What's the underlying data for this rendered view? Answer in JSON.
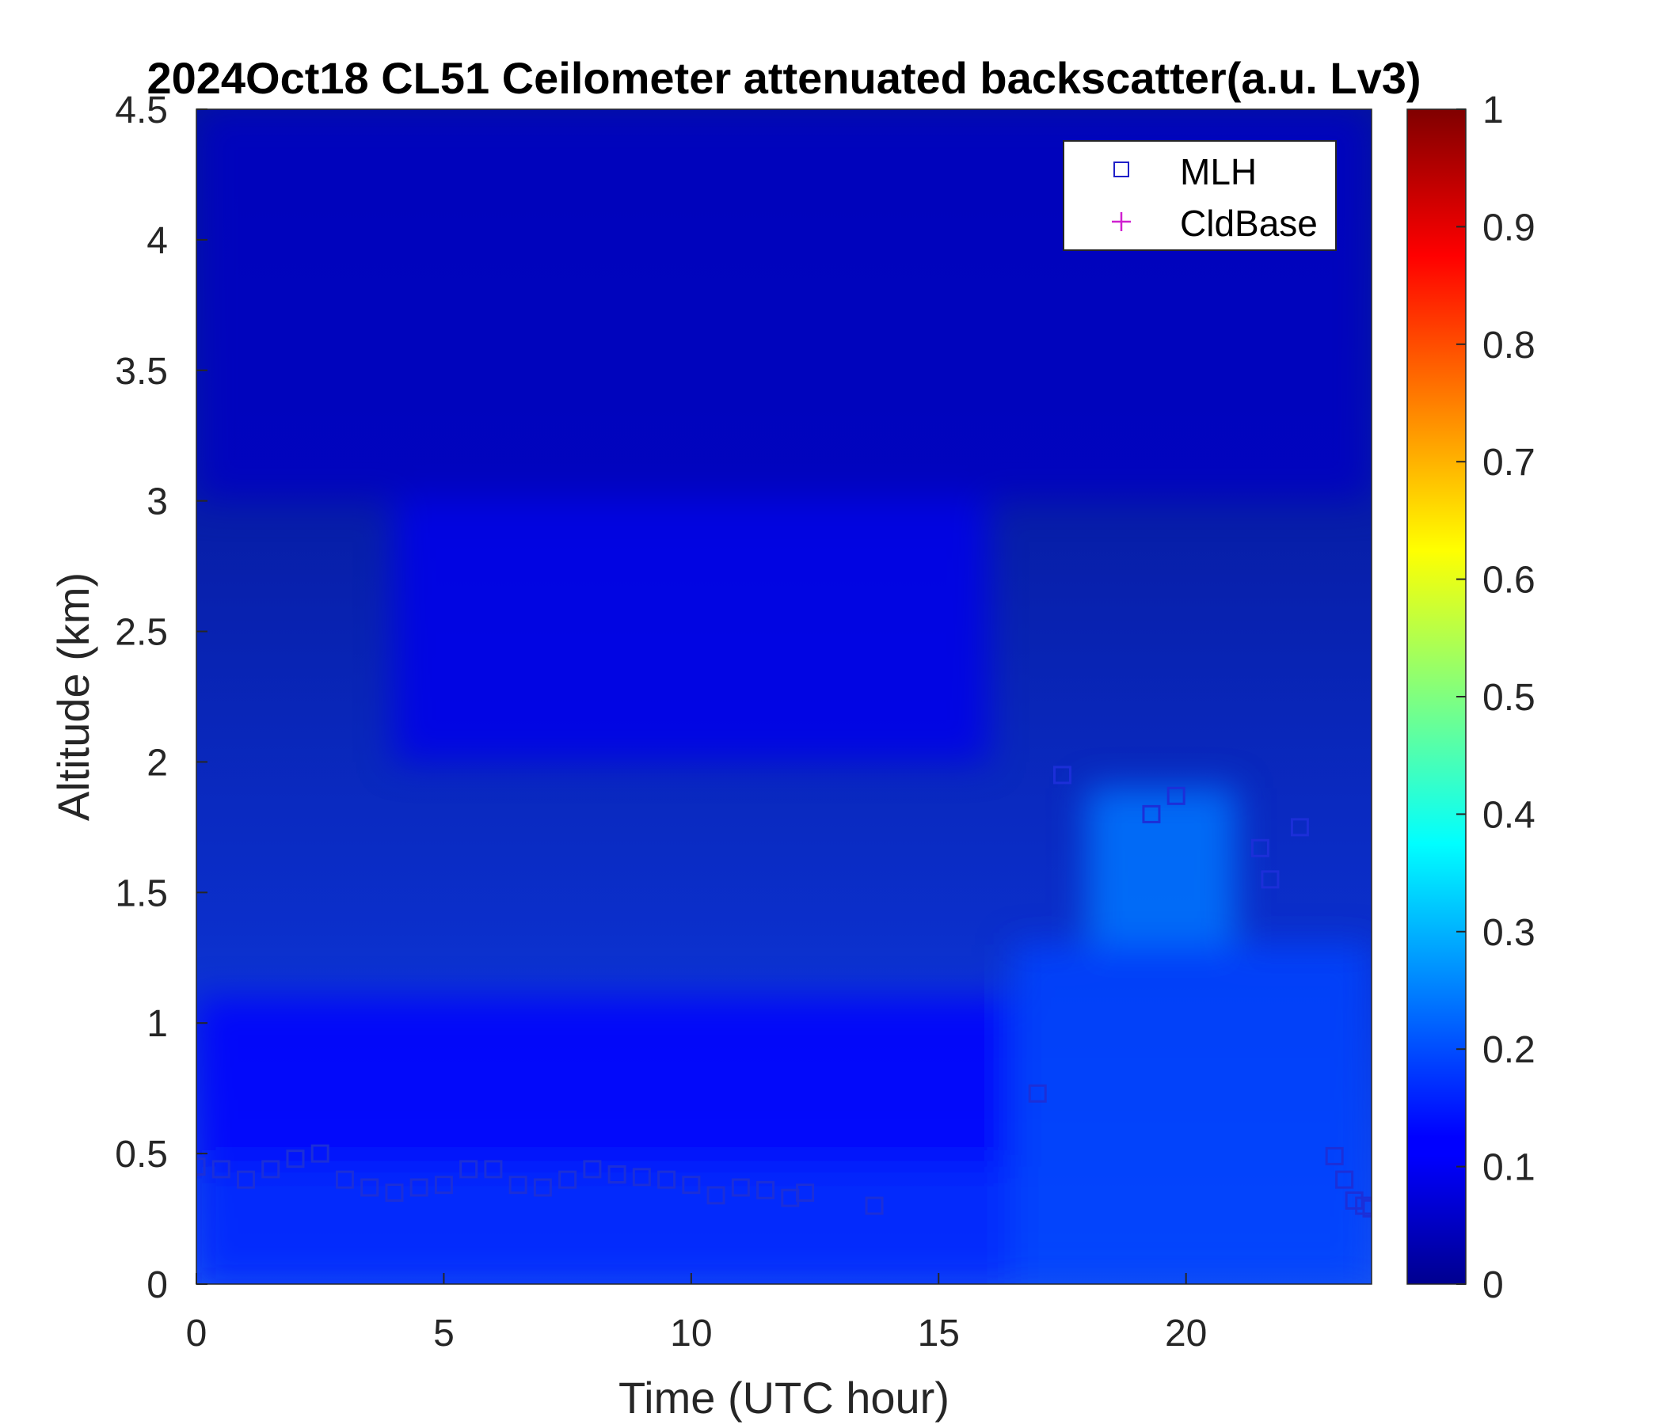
{
  "chart_data": {
    "type": "heatmap",
    "title": "2024Oct18 CL51 Ceilometer attenuated backscatter(a.u. Lv3)",
    "xlabel": "Time (UTC hour)",
    "ylabel": "Altitude (km)",
    "xlim": [
      0,
      23.75
    ],
    "ylim": [
      0,
      4.5
    ],
    "x_ticks": [
      "0",
      "5",
      "10",
      "15",
      "20"
    ],
    "y_ticks": [
      "0",
      "0.5",
      "1",
      "1.5",
      "2",
      "2.5",
      "3",
      "3.5",
      "4",
      "4.5"
    ],
    "colorbar": {
      "colormap": "jet",
      "range": [
        0,
        1
      ],
      "ticks": [
        "0",
        "0.1",
        "0.2",
        "0.3",
        "0.4",
        "0.5",
        "0.6",
        "0.7",
        "0.8",
        "0.9",
        "1"
      ]
    },
    "legend": {
      "placement": "top-right",
      "entries": [
        {
          "name": "MLH",
          "marker": "square",
          "color": "#2020c8"
        },
        {
          "name": "CldBase",
          "marker": "plus",
          "color": "#d020d0"
        }
      ]
    },
    "backscatter_regions": [
      {
        "t_start": 0,
        "t_end": 16.5,
        "alt_start": 0,
        "alt_end": 0.45,
        "value": 0.16
      },
      {
        "t_start": 0,
        "t_end": 16.5,
        "alt_start": 0.45,
        "alt_end": 1.1,
        "value": 0.11
      },
      {
        "t_start": 16.5,
        "t_end": 23.75,
        "alt_start": 0,
        "alt_end": 1.3,
        "value": 0.19
      },
      {
        "t_start": 18,
        "t_end": 21,
        "alt_start": 1.3,
        "alt_end": 1.9,
        "value": 0.24
      },
      {
        "t_start": 4,
        "t_end": 16,
        "alt_start": 2.0,
        "alt_end": 3.0,
        "value": 0.09
      },
      {
        "t_start": 0,
        "t_end": 23.75,
        "alt_start": 3.0,
        "alt_end": 4.5,
        "value": 0.05
      }
    ],
    "mlh_series": {
      "name": "MLH",
      "x": [
        0,
        0.5,
        1,
        1.5,
        2,
        2.5,
        3,
        3.5,
        4,
        4.5,
        5,
        5.5,
        6,
        6.5,
        7,
        7.5,
        8,
        8.5,
        9,
        9.5,
        10,
        10.5,
        11,
        11.5,
        12,
        12.3,
        13.7,
        17.0,
        17.5,
        19.3,
        19.8,
        21.5,
        21.7,
        22.3,
        23.0,
        23.2,
        23.4,
        23.6,
        23.75
      ],
      "y": [
        0.45,
        0.44,
        0.4,
        0.44,
        0.48,
        0.5,
        0.4,
        0.37,
        0.35,
        0.37,
        0.38,
        0.44,
        0.44,
        0.38,
        0.37,
        0.4,
        0.44,
        0.42,
        0.41,
        0.4,
        0.38,
        0.34,
        0.37,
        0.36,
        0.33,
        0.35,
        0.3,
        0.73,
        1.95,
        1.8,
        1.87,
        1.67,
        1.55,
        1.75,
        0.49,
        0.4,
        0.32,
        0.3,
        0.29
      ]
    }
  }
}
